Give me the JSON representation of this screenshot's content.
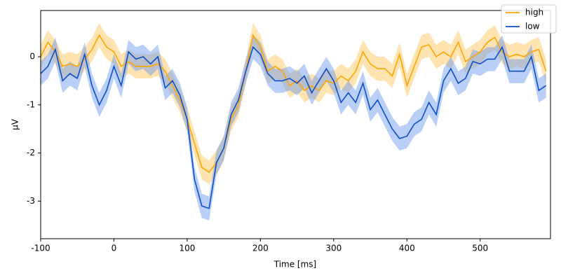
{
  "chart_data": {
    "type": "line",
    "xlabel": "Time [ms]",
    "ylabel": "µV",
    "x": [
      -100,
      -90,
      -80,
      -70,
      -60,
      -50,
      -40,
      -30,
      -20,
      -10,
      0,
      10,
      20,
      30,
      40,
      50,
      60,
      70,
      80,
      90,
      100,
      110,
      120,
      130,
      140,
      150,
      160,
      170,
      180,
      190,
      200,
      210,
      220,
      230,
      240,
      250,
      260,
      270,
      280,
      290,
      300,
      310,
      320,
      330,
      340,
      350,
      360,
      370,
      380,
      390,
      400,
      410,
      420,
      430,
      440,
      450,
      460,
      470,
      480,
      490,
      500,
      510,
      520,
      530,
      540,
      550,
      560,
      570,
      580,
      590
    ],
    "series": [
      {
        "name": "high",
        "color": "#ffa500",
        "band_color": "#ffa500",
        "error": 0.25,
        "values": [
          0.0,
          0.3,
          0.1,
          -0.2,
          -0.15,
          -0.2,
          -0.05,
          0.15,
          0.45,
          0.2,
          0.1,
          -0.2,
          -0.1,
          -0.2,
          -0.2,
          -0.2,
          -0.15,
          -0.3,
          -0.6,
          -0.9,
          -1.3,
          -1.8,
          -2.3,
          -2.4,
          -2.2,
          -1.9,
          -1.3,
          -1.0,
          -0.3,
          0.45,
          0.2,
          -0.3,
          -0.2,
          -0.3,
          -0.6,
          -0.5,
          -0.7,
          -0.6,
          -0.7,
          -0.5,
          -0.55,
          -0.4,
          -0.5,
          -0.3,
          0.1,
          -0.15,
          -0.25,
          -0.25,
          -0.4,
          0.05,
          -0.6,
          -0.2,
          0.2,
          0.25,
          0.0,
          0.1,
          0.0,
          0.3,
          -0.1,
          0.0,
          0.1,
          0.3,
          0.4,
          0.1,
          0.0,
          0.05,
          0.0,
          0.1,
          0.15,
          -0.3
        ]
      },
      {
        "name": "low",
        "color": "#0c4fc8",
        "band_color": "#6495ed",
        "error": 0.25,
        "values": [
          -0.35,
          -0.2,
          0.15,
          -0.5,
          -0.35,
          -0.45,
          0.05,
          -0.6,
          -1.0,
          -0.7,
          -0.2,
          -0.6,
          0.1,
          -0.05,
          0.0,
          -0.15,
          0.0,
          -0.65,
          -0.5,
          -0.8,
          -1.3,
          -2.55,
          -3.1,
          -3.15,
          -2.2,
          -1.9,
          -1.2,
          -0.9,
          -0.3,
          0.2,
          0.05,
          -0.35,
          -0.5,
          -0.5,
          -0.45,
          -0.55,
          -0.4,
          -0.75,
          -0.5,
          -0.25,
          -0.5,
          -0.95,
          -0.75,
          -0.95,
          -0.55,
          -1.1,
          -0.9,
          -1.2,
          -1.5,
          -1.7,
          -1.65,
          -1.4,
          -1.3,
          -0.95,
          -1.2,
          -0.5,
          -0.25,
          -0.55,
          -0.45,
          -0.1,
          -0.15,
          -0.05,
          -0.05,
          0.2,
          -0.3,
          -0.3,
          -0.3,
          0.0,
          -0.7,
          -0.6
        ]
      }
    ],
    "xlim": [
      -100,
      596
    ],
    "ylim": [
      -3.78,
      0.96
    ],
    "xticks": [
      -100,
      0,
      100,
      200,
      300,
      400,
      500
    ],
    "yticks": [
      -3,
      -2,
      -1,
      0
    ],
    "legend": "upper right"
  }
}
